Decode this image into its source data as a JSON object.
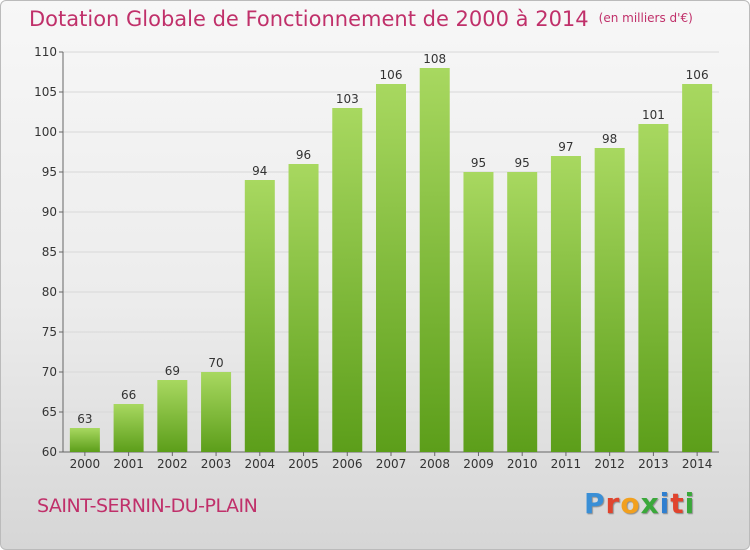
{
  "header": {
    "title": "Dotation Globale de Fonctionnement de 2000 à 2014",
    "subtitle": "(en milliers d'€)"
  },
  "footer": {
    "commune": "SAINT-SERNIN-DU-PLAIN",
    "logo": {
      "text": "Proxiti",
      "colors": [
        "#3a8fd6",
        "#e0442e",
        "#f2a01e",
        "#3aa83a",
        "#2f7fd0",
        "#e0442e",
        "#3aa83a"
      ]
    }
  },
  "colors": {
    "accent": "#c0306a",
    "bar_light": "#a8d860",
    "bar_dark": "#5c9e1a",
    "grid": "#d8d8d8",
    "axis_text": "#333333"
  },
  "chart_data": {
    "type": "bar",
    "title": "Dotation Globale de Fonctionnement de 2000 à 2014",
    "xlabel": "",
    "ylabel": "",
    "categories": [
      "2000",
      "2001",
      "2002",
      "2003",
      "2004",
      "2005",
      "2006",
      "2007",
      "2008",
      "2009",
      "2010",
      "2011",
      "2012",
      "2013",
      "2014"
    ],
    "values": [
      63,
      66,
      69,
      70,
      94,
      96,
      103,
      106,
      108,
      95,
      95,
      97,
      98,
      101,
      106
    ],
    "ylim": [
      60,
      110
    ],
    "yticks": [
      60,
      65,
      70,
      75,
      80,
      85,
      90,
      95,
      100,
      105,
      110
    ],
    "grid": true
  }
}
